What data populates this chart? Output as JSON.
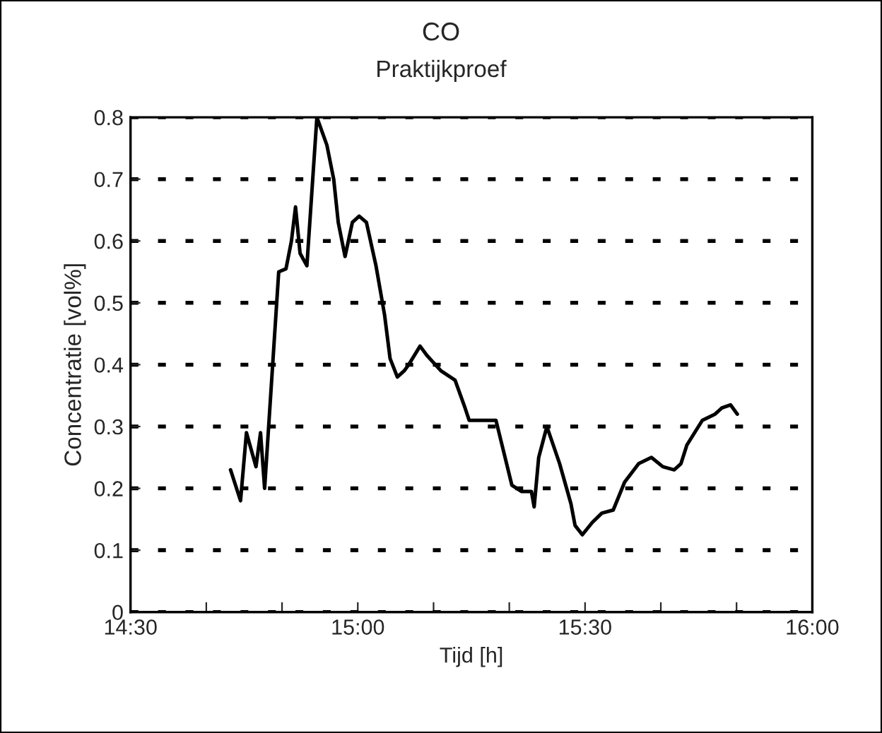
{
  "chart_data": {
    "type": "line",
    "title": "CO",
    "subtitle": "Praktijkproef",
    "xlabel": "Tijd [h]",
    "ylabel": "Concentratie [vol%]",
    "x": [
      14.72,
      14.742,
      14.755,
      14.776,
      14.786,
      14.795,
      14.826,
      14.842,
      14.854,
      14.863,
      14.873,
      14.888,
      14.91,
      14.932,
      14.947,
      14.957,
      14.972,
      14.988,
      15.003,
      15.019,
      15.04,
      15.059,
      15.071,
      15.087,
      15.102,
      15.112,
      15.137,
      15.152,
      15.183,
      15.214,
      15.236,
      15.245,
      15.304,
      15.339,
      15.36,
      15.382,
      15.388,
      15.398,
      15.416,
      15.444,
      15.469,
      15.478,
      15.494,
      15.516,
      15.537,
      15.562,
      15.587,
      15.618,
      15.646,
      15.671,
      15.696,
      15.711,
      15.724,
      15.758,
      15.786,
      15.801,
      15.82,
      15.835
    ],
    "series": [
      {
        "color": "#000000",
        "values": [
          0.23,
          0.18,
          0.29,
          0.235,
          0.29,
          0.2,
          0.55,
          0.555,
          0.6,
          0.655,
          0.58,
          0.56,
          0.8,
          0.755,
          0.7,
          0.63,
          0.575,
          0.63,
          0.64,
          0.63,
          0.56,
          0.48,
          0.41,
          0.38,
          0.39,
          0.4,
          0.43,
          0.415,
          0.39,
          0.375,
          0.33,
          0.31,
          0.31,
          0.205,
          0.195,
          0.195,
          0.17,
          0.25,
          0.3,
          0.24,
          0.175,
          0.14,
          0.125,
          0.145,
          0.16,
          0.165,
          0.21,
          0.24,
          0.25,
          0.235,
          0.23,
          0.24,
          0.27,
          0.31,
          0.32,
          0.33,
          0.335,
          0.32
        ]
      }
    ],
    "xlim": [
      14.5,
      16
    ],
    "xticks": [
      {
        "value": 14.5,
        "label": "14:30"
      },
      {
        "value": 14.6667,
        "label": null
      },
      {
        "value": 14.8333,
        "label": null
      },
      {
        "value": 15,
        "label": "15:00"
      },
      {
        "value": 15.1667,
        "label": null
      },
      {
        "value": 15.3333,
        "label": null
      },
      {
        "value": 15.5,
        "label": "15:30"
      },
      {
        "value": 15.6667,
        "label": null
      },
      {
        "value": 15.8333,
        "label": null
      },
      {
        "value": 16,
        "label": "16:00"
      }
    ],
    "ylim": [
      0,
      0.8
    ],
    "yticks": [
      0,
      0.1,
      0.2,
      0.3,
      0.4,
      0.5,
      0.6,
      0.7,
      0.8
    ],
    "grid": "y",
    "marker": "none",
    "line_style": "solid"
  }
}
